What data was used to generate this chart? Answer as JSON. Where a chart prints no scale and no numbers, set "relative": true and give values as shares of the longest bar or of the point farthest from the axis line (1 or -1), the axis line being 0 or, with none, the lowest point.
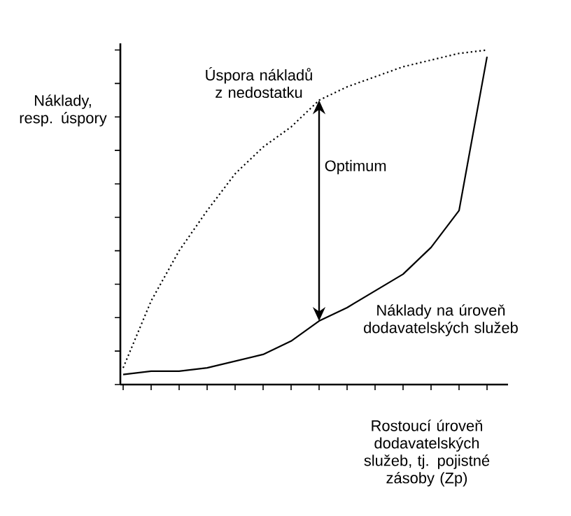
{
  "chart_data": {
    "type": "line",
    "relative": true,
    "xlabel": "Rostoucí úroveň dodavatelských služeb, tj. pojistné zásoby (Zp)",
    "ylabel": "Náklady, resp. úspory",
    "annotations": [
      "Optimum"
    ],
    "marker": "none",
    "categories": [
      null,
      null,
      null,
      null,
      null,
      null,
      null,
      null,
      null,
      null,
      null,
      null,
      null,
      null
    ],
    "series": [
      {
        "name": "Úspora nákladů z nedostatku",
        "color": "#000000",
        "line_style": "dotted",
        "values": [
          0.05,
          0.25,
          0.4,
          0.52,
          0.63,
          0.71,
          0.77,
          0.85,
          0.89,
          0.92,
          0.95,
          0.97,
          0.99,
          1.0
        ]
      },
      {
        "name": "Náklady na úroveň dodavatelských služeb",
        "color": "#000000",
        "line_style": "solid",
        "values": [
          0.03,
          0.04,
          0.04,
          0.05,
          0.07,
          0.09,
          0.13,
          0.19,
          0.23,
          0.28,
          0.33,
          0.41,
          0.52,
          0.98
        ]
      }
    ]
  }
}
